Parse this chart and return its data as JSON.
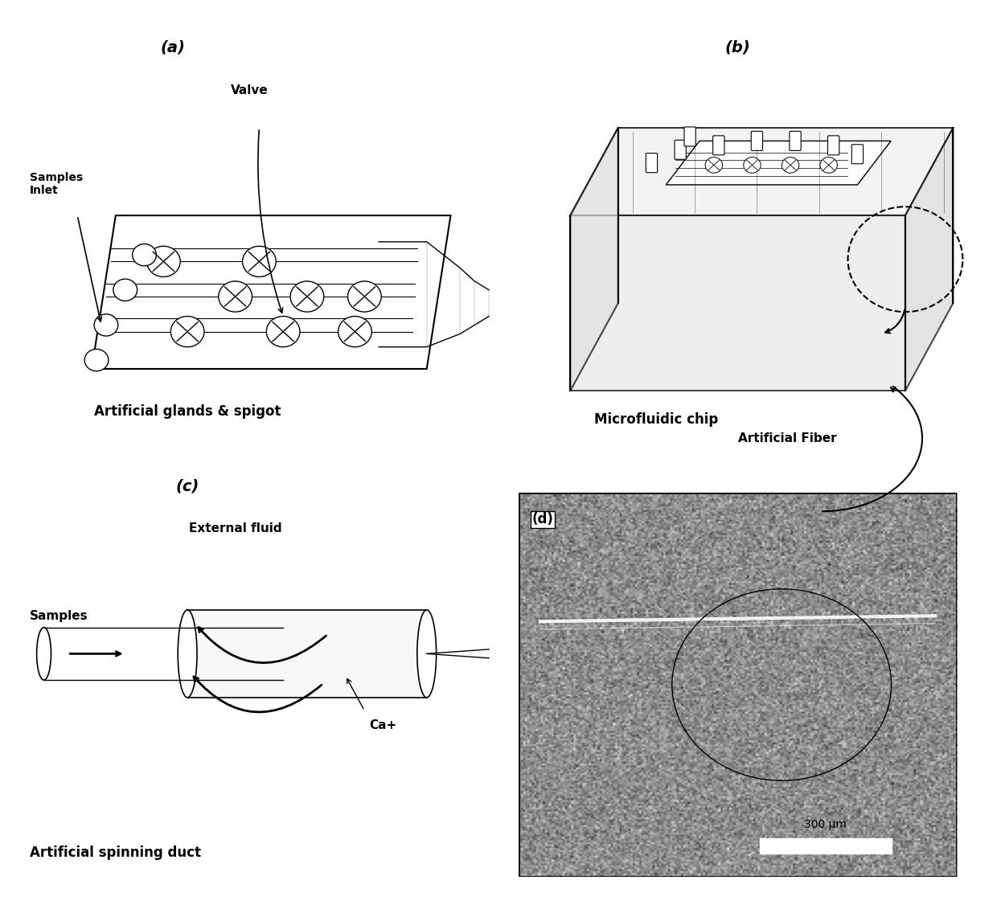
{
  "bg_color": "#ffffff",
  "text_color": "#000000",
  "panel_labels": [
    "(a)",
    "(b)",
    "(c)",
    "(d)"
  ],
  "panel_a_title": "Artificial glands & spigot",
  "panel_b_title": "Microfluidic chip",
  "panel_c_title": "Artificial spinning duct",
  "label_samples_inlet": "Samples\nInlet",
  "label_valve": "Valve",
  "label_external_fluid": "External fluid",
  "label_samples": "Samples",
  "label_ca": "Ca+",
  "label_artificial_fiber": "Artificial Fiber",
  "label_300um": "300 μm",
  "label_d": "(d)"
}
